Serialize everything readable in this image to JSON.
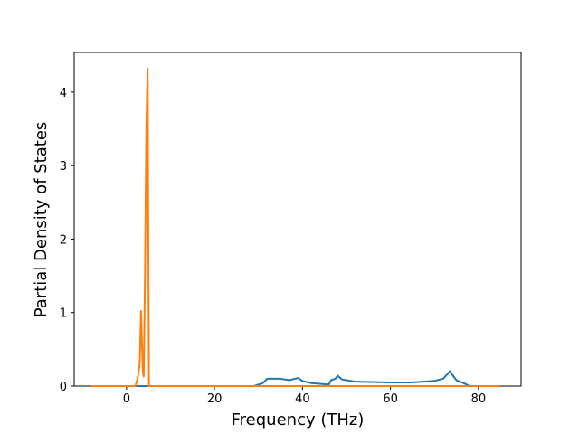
{
  "chart_data": {
    "type": "line",
    "x_label": "Frequency (THz)",
    "y_label": "Partial Density of States",
    "xlim": [
      -11.9,
      89.7
    ],
    "ylim": [
      0,
      4.54
    ],
    "xticks": [
      0,
      20,
      40,
      60,
      80
    ],
    "yticks": [
      0,
      1,
      2,
      3,
      4
    ],
    "series": [
      {
        "color": "#1f77b4",
        "x": [
          -8,
          29,
          31,
          32,
          35,
          37,
          39,
          40,
          42,
          46,
          46.5,
          47.5,
          48,
          49,
          52,
          60,
          65,
          70,
          72,
          73.5,
          75,
          77,
          78,
          85
        ],
        "values": [
          0,
          0,
          0.04,
          0.1,
          0.1,
          0.08,
          0.11,
          0.07,
          0.04,
          0.02,
          0.08,
          0.1,
          0.14,
          0.09,
          0.06,
          0.05,
          0.05,
          0.07,
          0.1,
          0.2,
          0.08,
          0.03,
          0,
          0
        ]
      },
      {
        "color": "#ff7f0e",
        "x": [
          -8,
          2,
          2.5,
          3,
          3.3,
          3.7,
          3.9,
          4.2,
          4.5,
          4.8,
          5.1,
          85
        ],
        "values": [
          0,
          0,
          0.1,
          0.3,
          1.03,
          0.2,
          0.12,
          1.5,
          3.5,
          4.33,
          0,
          0
        ]
      }
    ]
  }
}
